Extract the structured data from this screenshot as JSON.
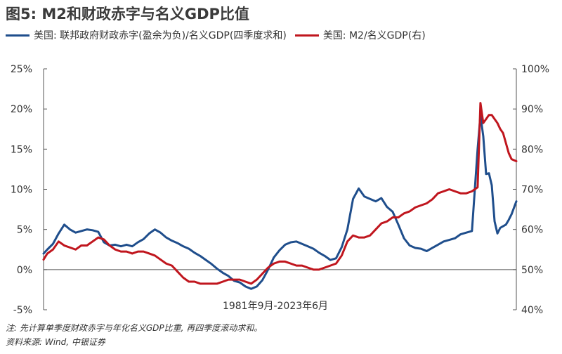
{
  "figure": {
    "title": "图5: M2和财政赤字与名义GDP比值",
    "note": "注: 先计算单季度财政赤字与年化名义GDP比重, 再四季度滚动求和。",
    "source": "资料来源: Wind, 中银证券"
  },
  "chart_data": {
    "type": "line",
    "title": "图5: M2和财政赤字与名义GDP比值",
    "xlabel": "1981年9月-2023年6月",
    "x_range": [
      1981.67,
      2023.42
    ],
    "grid": false,
    "legend_position": "top",
    "y_left": {
      "ylim": [
        -5,
        25
      ],
      "ticks": [
        -5,
        0,
        5,
        10,
        15,
        20,
        25
      ],
      "tick_labels": [
        "-5%",
        "0%",
        "5%",
        "10%",
        "15%",
        "20%",
        "25%"
      ]
    },
    "y_right": {
      "ylim": [
        40,
        100
      ],
      "ticks": [
        40,
        50,
        60,
        70,
        80,
        90,
        100
      ],
      "tick_labels": [
        "40%",
        "50%",
        "60%",
        "70%",
        "80%",
        "90%",
        "100%"
      ]
    },
    "series": [
      {
        "name": "美国: 联邦政府财政赤字(盈余为负)/名义GDP(四季度求和)",
        "color": "#1f4e8c",
        "axis": "left",
        "x": [
          1981.67,
          1982.0,
          1982.5,
          1983.0,
          1983.5,
          1984.0,
          1984.5,
          1985.0,
          1985.5,
          1986.0,
          1986.5,
          1987.0,
          1987.5,
          1988.0,
          1988.5,
          1989.0,
          1989.5,
          1990.0,
          1990.5,
          1991.0,
          1991.5,
          1992.0,
          1992.5,
          1993.0,
          1993.5,
          1994.0,
          1994.5,
          1995.0,
          1995.5,
          1996.0,
          1996.5,
          1997.0,
          1997.5,
          1998.0,
          1998.5,
          1999.0,
          1999.5,
          2000.0,
          2000.5,
          2001.0,
          2001.5,
          2002.0,
          2002.5,
          2003.0,
          2003.5,
          2004.0,
          2004.5,
          2005.0,
          2005.5,
          2006.0,
          2006.5,
          2007.0,
          2007.5,
          2008.0,
          2008.5,
          2009.0,
          2009.5,
          2010.0,
          2010.5,
          2011.0,
          2011.5,
          2012.0,
          2012.5,
          2013.0,
          2013.5,
          2014.0,
          2014.5,
          2015.0,
          2015.5,
          2016.0,
          2016.5,
          2017.0,
          2017.5,
          2018.0,
          2018.5,
          2019.0,
          2019.5,
          2020.0,
          2020.25,
          2020.5,
          2020.75,
          2021.0,
          2021.25,
          2021.5,
          2021.75,
          2022.0,
          2022.25,
          2022.5,
          2022.75,
          2023.0,
          2023.42
        ],
        "values": [
          2.0,
          2.5,
          3.2,
          4.5,
          5.6,
          5.0,
          4.6,
          4.8,
          5.0,
          4.9,
          4.7,
          3.4,
          3.0,
          3.1,
          2.9,
          3.1,
          2.9,
          3.4,
          3.8,
          4.5,
          5.0,
          4.6,
          4.0,
          3.6,
          3.3,
          2.9,
          2.6,
          2.1,
          1.7,
          1.2,
          0.7,
          0.1,
          -0.4,
          -0.8,
          -1.4,
          -1.6,
          -2.1,
          -2.4,
          -2.1,
          -1.3,
          0.0,
          1.5,
          2.4,
          3.1,
          3.4,
          3.5,
          3.2,
          2.9,
          2.6,
          2.1,
          1.7,
          1.2,
          1.4,
          2.8,
          5.0,
          8.8,
          10.1,
          9.1,
          8.8,
          8.5,
          8.9,
          7.8,
          7.2,
          5.6,
          3.9,
          3.0,
          2.7,
          2.6,
          2.3,
          2.7,
          3.1,
          3.5,
          3.7,
          3.9,
          4.4,
          4.6,
          4.8,
          15.0,
          19.2,
          16.6,
          11.9,
          12.0,
          10.5,
          6.0,
          4.5,
          5.2,
          5.4,
          5.6,
          6.2,
          6.9,
          8.5
        ]
      },
      {
        "name": "美国: M2/名义GDP(右)",
        "color": "#c0161e",
        "axis": "right",
        "x": [
          1981.67,
          1982.0,
          1982.5,
          1983.0,
          1983.5,
          1984.0,
          1984.5,
          1985.0,
          1985.5,
          1986.0,
          1986.5,
          1987.0,
          1987.5,
          1988.0,
          1988.5,
          1989.0,
          1989.5,
          1990.0,
          1990.5,
          1991.0,
          1991.5,
          1992.0,
          1992.5,
          1993.0,
          1993.5,
          1994.0,
          1994.5,
          1995.0,
          1995.5,
          1996.0,
          1996.5,
          1997.0,
          1997.5,
          1998.0,
          1998.5,
          1999.0,
          1999.5,
          2000.0,
          2000.5,
          2001.0,
          2001.5,
          2002.0,
          2002.5,
          2003.0,
          2003.5,
          2004.0,
          2004.5,
          2005.0,
          2005.5,
          2006.0,
          2006.5,
          2007.0,
          2007.5,
          2008.0,
          2008.5,
          2009.0,
          2009.5,
          2010.0,
          2010.5,
          2011.0,
          2011.5,
          2012.0,
          2012.5,
          2013.0,
          2013.5,
          2014.0,
          2014.5,
          2015.0,
          2015.5,
          2016.0,
          2016.5,
          2017.0,
          2017.5,
          2018.0,
          2018.5,
          2019.0,
          2019.5,
          2020.0,
          2020.25,
          2020.5,
          2020.75,
          2021.0,
          2021.25,
          2021.5,
          2021.75,
          2022.0,
          2022.25,
          2022.5,
          2022.75,
          2023.0,
          2023.42
        ],
        "values": [
          52.5,
          54.0,
          55.0,
          57.0,
          56.0,
          55.5,
          55.0,
          56.0,
          56.0,
          57.0,
          58.0,
          57.5,
          56.0,
          55.0,
          54.5,
          54.5,
          54.0,
          54.5,
          54.5,
          54.0,
          53.5,
          52.5,
          51.5,
          51.0,
          49.5,
          48.0,
          47.0,
          47.0,
          46.5,
          46.5,
          46.5,
          46.5,
          47.0,
          47.5,
          47.5,
          47.5,
          47.0,
          46.5,
          47.5,
          49.0,
          50.5,
          51.5,
          52.0,
          52.0,
          51.5,
          51.0,
          51.0,
          50.5,
          50.0,
          50.0,
          50.5,
          51.0,
          51.5,
          53.5,
          57.0,
          58.5,
          58.0,
          58.0,
          58.5,
          60.0,
          61.5,
          62.0,
          63.0,
          63.0,
          64.0,
          64.5,
          65.5,
          66.0,
          66.5,
          67.5,
          69.0,
          69.5,
          70.0,
          69.5,
          69.0,
          69.0,
          69.5,
          70.5,
          91.5,
          86.5,
          87.5,
          88.5,
          88.5,
          87.5,
          86.5,
          85.0,
          84.0,
          81.5,
          79.0,
          77.5,
          77.0
        ]
      }
    ]
  }
}
